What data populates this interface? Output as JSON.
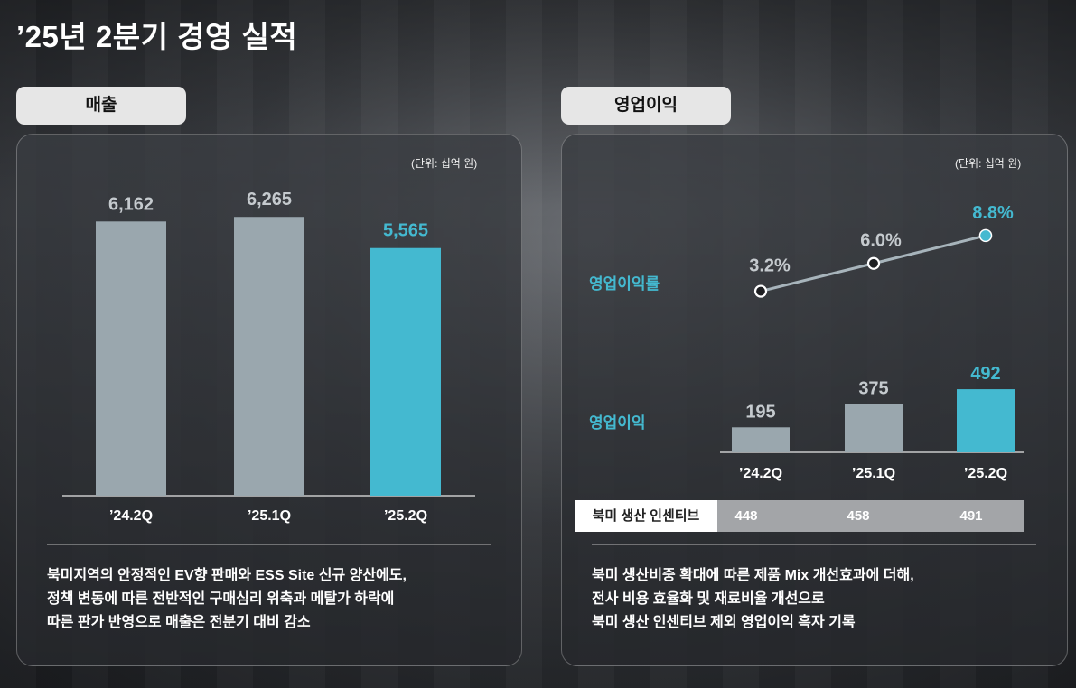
{
  "page": {
    "title": "’25년 2분기 경영 실적"
  },
  "colors": {
    "accent": "#44b9d0",
    "bar_gray": "#9aa7ae",
    "value_gray": "#c5cace",
    "line": "#a7b4bb"
  },
  "revenue": {
    "tab_label": "매출",
    "unit": "(단위: 십억 원)",
    "summary": [
      "북미지역의 안정적인 EV향 판매와 ESS Site 신규 양산에도,",
      "정책 변동에 따른 전반적인 구매심리 위축과 메탈가 하락에",
      "따른 판가 반영으로 매출은 전분기 대비 감소"
    ]
  },
  "operating": {
    "tab_label": "영업이익",
    "unit": "(단위: 십억 원)",
    "margin_label": "영업이익률",
    "profit_label": "영업이익",
    "incentive_label": "북미 생산 인센티브",
    "incentive_values": [
      "448",
      "458",
      "491"
    ],
    "summary": [
      "북미 생산비중 확대에 따른 제품 Mix 개선효과에 더해,",
      "전사 비용 효율화 및 재료비율 개선으로",
      "북미 생산 인센티브 제외 영업이익 흑자 기록"
    ]
  },
  "chart_data": [
    {
      "type": "bar",
      "title": "매출",
      "categories": [
        "’24.2Q",
        "’25.1Q",
        "’25.2Q"
      ],
      "values": [
        6162,
        6265,
        5565
      ],
      "value_labels": [
        "6,162",
        "6,265",
        "5,565"
      ],
      "highlight_index": 2,
      "ylim": [
        0,
        7000
      ]
    },
    {
      "type": "bar",
      "title": "영업이익",
      "categories": [
        "’24.2Q",
        "’25.1Q",
        "’25.2Q"
      ],
      "values": [
        195,
        375,
        492
      ],
      "value_labels": [
        "195",
        "375",
        "492"
      ],
      "highlight_index": 2,
      "ylim": [
        0,
        1900
      ]
    },
    {
      "type": "line",
      "title": "영업이익률",
      "categories": [
        "’24.2Q",
        "’25.1Q",
        "’25.2Q"
      ],
      "values": [
        3.2,
        6.0,
        8.8
      ],
      "value_labels": [
        "3.2%",
        "6.0%",
        "8.8%"
      ],
      "highlight_index": 2,
      "ylim": [
        -2.2,
        10.7
      ]
    }
  ]
}
